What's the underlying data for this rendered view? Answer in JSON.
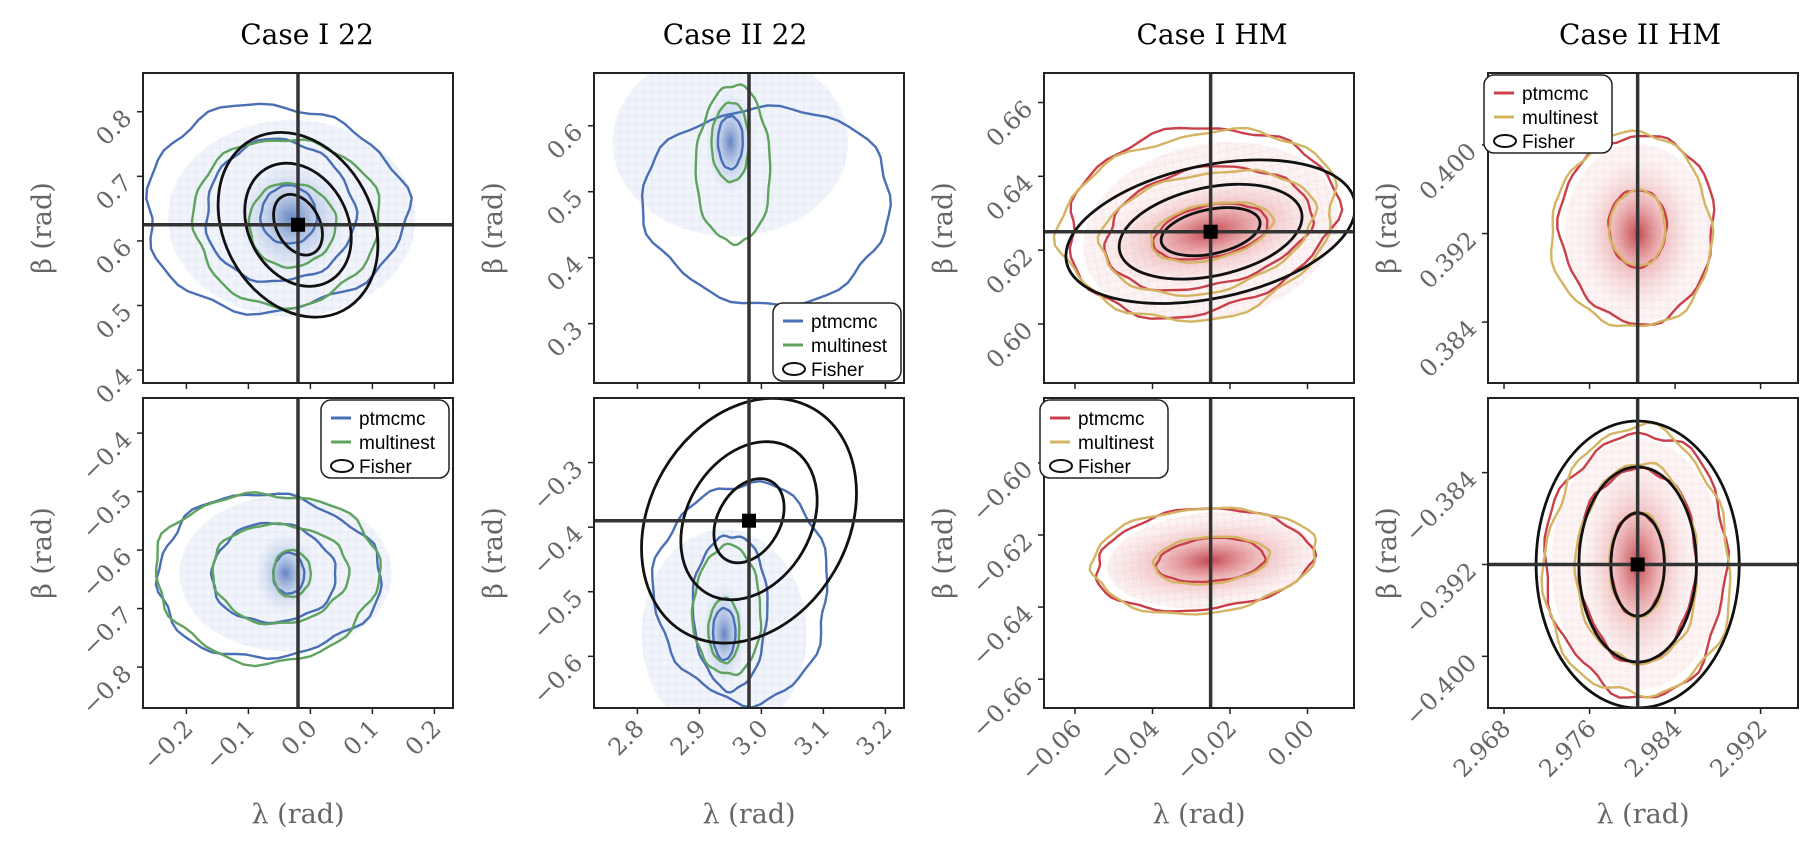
{
  "figure": {
    "column_titles": [
      "Case I 22",
      "Case II 22",
      "Case I HM",
      "Case II HM"
    ],
    "xlabel": "λ (rad)",
    "ylabel": "β (rad)",
    "colors": {
      "blue_mcmc": "#4a6fb5",
      "green_multinest": "#5fa35f",
      "red_mcmc": "#c9404a",
      "gold_multinest": "#d4b463",
      "fisher": "#111111",
      "truth": "#333333"
    }
  },
  "chart_data": [
    {
      "type": "scatter",
      "title": "Case I 22",
      "row": 0,
      "col": 0,
      "xlim": [
        -0.27,
        0.23
      ],
      "ylim": [
        0.38,
        0.86
      ],
      "xticks": [],
      "xtick_labels": [],
      "yticks": [
        0.4,
        0.5,
        0.6,
        0.7,
        0.8
      ],
      "ytick_labels": [
        "0.4",
        "0.5",
        "0.6",
        "0.7",
        "0.8"
      ],
      "xlabel": "",
      "ylabel": "β (rad)",
      "truth": [
        -0.02,
        0.625
      ],
      "posterior_center": [
        -0.03,
        0.635
      ],
      "series": [
        {
          "name": "ptmcmc",
          "color": "#4a6fb5",
          "contours": [
            [
              -0.035,
              0.64,
              0.045,
              0.045,
              0
            ],
            [
              -0.05,
              0.645,
              0.12,
              0.11,
              0
            ],
            [
              -0.06,
              0.65,
              0.21,
              0.16,
              0
            ]
          ]
        },
        {
          "name": "multinest",
          "color": "#5fa35f",
          "contours": [
            [
              -0.03,
              0.625,
              0.07,
              0.065,
              0
            ],
            [
              -0.04,
              0.63,
              0.15,
              0.13,
              0
            ]
          ]
        }
      ],
      "fisher": {
        "center": [
          -0.02,
          0.625
        ],
        "sigma": [
          [
            0.035,
            0.05,
            -28
          ],
          [
            0.08,
            0.1,
            -28
          ],
          [
            0.12,
            0.15,
            -28
          ]
        ]
      },
      "legend": null
    },
    {
      "type": "scatter",
      "title": "Case II 22",
      "row": 0,
      "col": 1,
      "xlim": [
        2.73,
        3.23
      ],
      "ylim": [
        0.21,
        0.68
      ],
      "xticks": [],
      "xtick_labels": [],
      "yticks": [
        0.3,
        0.4,
        0.5,
        0.6
      ],
      "ytick_labels": [
        "0.3",
        "0.4",
        "0.5",
        "0.6"
      ],
      "xlabel": "",
      "ylabel": "β (rad)",
      "truth": [
        2.98,
        null
      ],
      "posterior_center": [
        2.95,
        0.575
      ],
      "series": [
        {
          "name": "ptmcmc",
          "color": "#4a6fb5",
          "contours": [
            [
              2.95,
              0.575,
              0.02,
              0.04,
              0
            ],
            [
              3.01,
              0.48,
              0.2,
              0.15,
              0
            ]
          ]
        },
        {
          "name": "multinest",
          "color": "#5fa35f",
          "contours": [
            [
              2.95,
              0.575,
              0.03,
              0.06,
              0
            ],
            [
              2.955,
              0.54,
              0.06,
              0.12,
              0
            ]
          ]
        }
      ],
      "fisher": null,
      "legend": {
        "position": "bottom-right",
        "entries": [
          "ptmcmc",
          "multinest",
          "Fisher"
        ],
        "colors": [
          "#4a6fb5",
          "#5fa35f",
          "#111111"
        ]
      }
    },
    {
      "type": "scatter",
      "title": "Case I HM",
      "row": 0,
      "col": 2,
      "xlim": [
        -0.068,
        0.012
      ],
      "ylim": [
        0.584,
        0.668
      ],
      "xticks": [],
      "xtick_labels": [],
      "yticks": [
        0.6,
        0.62,
        0.64,
        0.66
      ],
      "ytick_labels": [
        "0.60",
        "0.62",
        "0.64",
        "0.66"
      ],
      "xlabel": "",
      "ylabel": "β (rad)",
      "truth": [
        -0.025,
        0.625
      ],
      "posterior_center": [
        -0.025,
        0.625
      ],
      "series": [
        {
          "name": "ptmcmc",
          "color": "#c9404a",
          "contours": [
            [
              -0.025,
              0.625,
              0.015,
              0.007,
              -12
            ],
            [
              -0.026,
              0.626,
              0.027,
              0.016,
              -12
            ],
            [
              -0.028,
              0.628,
              0.035,
              0.025,
              -12
            ]
          ]
        },
        {
          "name": "multinest",
          "color": "#d4b463",
          "contours": [
            [
              -0.025,
              0.625,
              0.016,
              0.0075,
              -12
            ],
            [
              -0.026,
              0.625,
              0.028,
              0.016,
              -12
            ],
            [
              -0.028,
              0.627,
              0.036,
              0.025,
              -12
            ]
          ]
        }
      ],
      "fisher": {
        "center": [
          -0.025,
          0.625
        ],
        "sigma": [
          [
            0.013,
            0.006,
            -12
          ],
          [
            0.024,
            0.012,
            -12
          ],
          [
            0.038,
            0.018,
            -12
          ]
        ]
      },
      "legend": null
    },
    {
      "type": "scatter",
      "title": "Case II HM",
      "row": 0,
      "col": 3,
      "xlim": [
        2.9665,
        2.9955
      ],
      "ylim": [
        0.3785,
        0.4065
      ],
      "xticks": [],
      "xtick_labels": [],
      "yticks": [
        0.384,
        0.392,
        0.4
      ],
      "ytick_labels": [
        "0.384",
        "0.392",
        "0.400"
      ],
      "xlabel": "",
      "ylabel": "β (rad)",
      "truth": [
        2.9805,
        null
      ],
      "posterior_center": [
        2.9805,
        0.392
      ],
      "series": [
        {
          "name": "ptmcmc",
          "color": "#c9404a",
          "contours": [
            [
              2.9805,
              0.3925,
              0.0027,
              0.0035,
              0
            ],
            [
              2.9805,
              0.3925,
              0.0072,
              0.0085,
              0
            ]
          ]
        },
        {
          "name": "multinest",
          "color": "#d4b463",
          "contours": [
            [
              2.9805,
              0.3925,
              0.0026,
              0.0034,
              0
            ],
            [
              2.98,
              0.3922,
              0.0075,
              0.0088,
              0
            ]
          ]
        }
      ],
      "fisher": null,
      "legend": {
        "position": "top-left",
        "entries": [
          "ptmcmc",
          "multinest",
          "Fisher"
        ],
        "colors": [
          "#c9404a",
          "#d4b463",
          "#111111"
        ]
      }
    },
    {
      "type": "scatter",
      "title": "",
      "row": 1,
      "col": 0,
      "xlim": [
        -0.27,
        0.23
      ],
      "ylim": [
        -0.87,
        -0.34
      ],
      "xticks": [
        -0.2,
        -0.1,
        0.0,
        0.1,
        0.2
      ],
      "xtick_labels": [
        "−0.2",
        "−0.1",
        "0.0",
        "0.1",
        "0.2"
      ],
      "yticks": [
        -0.8,
        -0.7,
        -0.6,
        -0.5,
        -0.4
      ],
      "ytick_labels": [
        "−0.8",
        "−0.7",
        "−0.6",
        "−0.5",
        "−0.4"
      ],
      "xlabel": "λ (rad)",
      "ylabel": "β (rad)",
      "truth": [
        -0.02,
        null
      ],
      "posterior_center": [
        -0.04,
        -0.64
      ],
      "series": [
        {
          "name": "ptmcmc",
          "color": "#4a6fb5",
          "contours": [
            [
              -0.035,
              -0.64,
              0.025,
              0.035,
              0
            ],
            [
              -0.06,
              -0.64,
              0.1,
              0.085,
              0
            ],
            [
              -0.07,
              -0.645,
              0.18,
              0.14,
              0
            ]
          ]
        },
        {
          "name": "multinest",
          "color": "#5fa35f",
          "contours": [
            [
              -0.03,
              -0.64,
              0.03,
              0.04,
              0
            ],
            [
              -0.05,
              -0.64,
              0.11,
              0.085,
              0
            ],
            [
              -0.07,
              -0.645,
              0.18,
              0.145,
              0
            ]
          ]
        }
      ],
      "fisher": null,
      "legend": {
        "position": "top-right",
        "entries": [
          "ptmcmc",
          "multinest",
          "Fisher"
        ],
        "colors": [
          "#4a6fb5",
          "#5fa35f",
          "#111111"
        ]
      }
    },
    {
      "type": "scatter",
      "title": "",
      "row": 1,
      "col": 1,
      "xlim": [
        2.73,
        3.23
      ],
      "ylim": [
        -0.68,
        -0.2
      ],
      "xticks": [
        2.8,
        2.9,
        3.0,
        3.1,
        3.2
      ],
      "xtick_labels": [
        "2.8",
        "2.9",
        "3.0",
        "3.1",
        "3.2"
      ],
      "yticks": [
        -0.6,
        -0.5,
        -0.4,
        -0.3
      ],
      "ytick_labels": [
        "−0.6",
        "−0.5",
        "−0.4",
        "−0.3"
      ],
      "xlabel": "λ (rad)",
      "ylabel": "β (rad)",
      "truth": [
        2.98,
        -0.39
      ],
      "posterior_center": [
        2.94,
        -0.565
      ],
      "series": [
        {
          "name": "ptmcmc",
          "color": "#4a6fb5",
          "contours": [
            [
              2.94,
              -0.565,
              0.018,
              0.04,
              0
            ],
            [
              2.95,
              -0.53,
              0.06,
              0.12,
              0
            ],
            [
              2.97,
              -0.5,
              0.14,
              0.17,
              0
            ]
          ]
        },
        {
          "name": "multinest",
          "color": "#5fa35f",
          "contours": [
            [
              2.94,
              -0.56,
              0.025,
              0.05,
              0
            ],
            [
              2.945,
              -0.53,
              0.055,
              0.1,
              0
            ]
          ]
        }
      ],
      "fisher": {
        "center": [
          2.98,
          -0.39
        ],
        "sigma": [
          [
            0.05,
            0.07,
            30
          ],
          [
            0.1,
            0.13,
            30
          ],
          [
            0.16,
            0.2,
            30
          ]
        ]
      },
      "legend": null
    },
    {
      "type": "scatter",
      "title": "",
      "row": 1,
      "col": 2,
      "xlim": [
        -0.068,
        0.012
      ],
      "ylim": [
        -0.668,
        -0.582
      ],
      "xticks": [
        -0.06,
        -0.04,
        -0.02,
        0.0
      ],
      "xtick_labels": [
        "−0.06",
        "−0.04",
        "−0.02",
        "0.00"
      ],
      "yticks": [
        -0.66,
        -0.64,
        -0.62,
        -0.6
      ],
      "ytick_labels": [
        "−0.66",
        "−0.64",
        "−0.62",
        "−0.60"
      ],
      "xlabel": "λ (rad)",
      "ylabel": "β (rad)",
      "truth": [
        -0.025,
        null
      ],
      "posterior_center": [
        -0.025,
        -0.627
      ],
      "series": [
        {
          "name": "ptmcmc",
          "color": "#c9404a",
          "contours": [
            [
              -0.025,
              -0.627,
              0.014,
              0.006,
              -5
            ],
            [
              -0.027,
              -0.627,
              0.028,
              0.014,
              -5
            ]
          ]
        },
        {
          "name": "multinest",
          "color": "#d4b463",
          "contours": [
            [
              -0.025,
              -0.627,
              0.015,
              0.0065,
              -5
            ],
            [
              -0.027,
              -0.627,
              0.029,
              0.0145,
              -5
            ]
          ]
        }
      ],
      "fisher": null,
      "legend": {
        "position": "top-left",
        "entries": [
          "ptmcmc",
          "multinest",
          "Fisher"
        ],
        "colors": [
          "#c9404a",
          "#d4b463",
          "#111111"
        ]
      }
    },
    {
      "type": "scatter",
      "title": "",
      "row": 1,
      "col": 3,
      "xlim": [
        2.9665,
        2.9955
      ],
      "ylim": [
        -0.4045,
        -0.3775
      ],
      "xticks": [
        2.968,
        2.976,
        2.984,
        2.992
      ],
      "xtick_labels": [
        "2.968",
        "2.976",
        "2.984",
        "2.992"
      ],
      "yticks": [
        -0.4,
        -0.392,
        -0.384
      ],
      "ytick_labels": [
        "−0.400",
        "−0.392",
        "−0.384"
      ],
      "xlabel": "λ (rad)",
      "ylabel": "β (rad)",
      "truth": [
        2.9805,
        -0.392
      ],
      "posterior_center": [
        2.9805,
        -0.392
      ],
      "series": [
        {
          "name": "ptmcmc",
          "color": "#c9404a",
          "contours": [
            [
              2.9805,
              -0.392,
              0.0025,
              0.0045,
              0
            ],
            [
              2.9805,
              -0.392,
              0.0055,
              0.0085,
              0
            ],
            [
              2.9805,
              -0.392,
              0.0085,
              0.0115,
              0
            ]
          ]
        },
        {
          "name": "multinest",
          "color": "#d4b463",
          "contours": [
            [
              2.9805,
              -0.392,
              0.0026,
              0.0046,
              0
            ],
            [
              2.9805,
              -0.392,
              0.0057,
              0.0087,
              0
            ],
            [
              2.9805,
              -0.392,
              0.0087,
              0.0117,
              0
            ]
          ]
        }
      ],
      "fisher": {
        "center": [
          2.9805,
          -0.392
        ],
        "sigma": [
          [
            0.0025,
            0.0045,
            0
          ],
          [
            0.0055,
            0.0085,
            0
          ],
          [
            0.0095,
            0.0125,
            0
          ]
        ]
      },
      "legend": null
    }
  ]
}
